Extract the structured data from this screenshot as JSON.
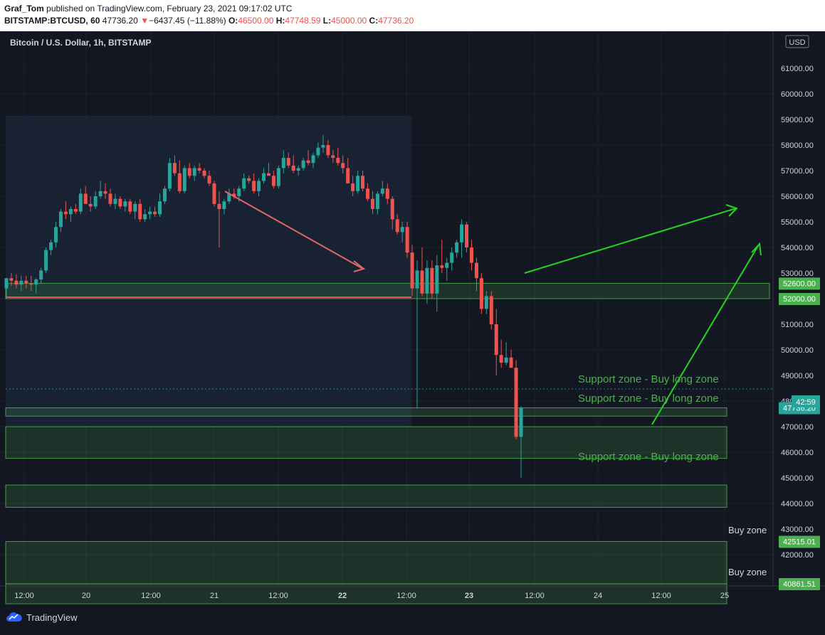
{
  "header": {
    "author": "Graf_Tom",
    "published_text": "published on TradingView.com, February 23, 2021 09:17:02 UTC",
    "symbol": "BITSTAMP:BTCUSD, 60",
    "last_price": "47736.20",
    "change_arrow": "▼",
    "change": "−6437.45 (−11.88%)",
    "o_label": "O:",
    "o_value": "46500.00",
    "h_label": "H:",
    "h_value": "47748.59",
    "l_label": "L:",
    "l_value": "45000.00",
    "c_label": "C:",
    "c_value": "47736.20"
  },
  "chart": {
    "legend_title": "Bitcoin / U.S. Dollar, 1h, BITSTAMP",
    "currency_button": "USD",
    "countdown": "42:59",
    "price_axis_labels": [
      "61000.00",
      "60000.00",
      "59000.00",
      "58000.00",
      "57000.00",
      "56000.00",
      "55000.00",
      "54000.00",
      "53000.00",
      "52000.00",
      "51000.00",
      "50000.00",
      "49000.00",
      "48000.00",
      "47000.00",
      "46000.00",
      "45000.00",
      "44000.00",
      "43000.00",
      "42000.00"
    ],
    "time_axis_labels": [
      "12:00",
      "20",
      "12:00",
      "21",
      "12:00",
      "22",
      "12:00",
      "23",
      "12:00",
      "24",
      "12:00",
      "25"
    ],
    "level_badges": [
      {
        "name": "level-52600",
        "text": "52600.00",
        "price": 52600
      },
      {
        "name": "level-52000",
        "text": "52000.00",
        "price": 52000
      },
      {
        "name": "level-current",
        "text": "47736.20",
        "price": 47736.2
      },
      {
        "name": "level-42515",
        "text": "42515.01",
        "price": 42515.01
      },
      {
        "name": "level-40861",
        "text": "40861.51",
        "price": 40861.51
      }
    ],
    "zone_labels": {
      "support1": "Support zone - Buy long zone",
      "support2": "Support zone - Buy long zone",
      "support3": "Support zone - Buy long zone",
      "buy1": "Buy zone",
      "buy2": "Buy zone"
    },
    "colors": {
      "up": "#26a69a",
      "down": "#ef5350",
      "zone": "#4caf50",
      "arrow_green": "#22d61f",
      "arrow_red": "#e06666",
      "background": "#131722"
    }
  },
  "footer": {
    "brand": "TradingView"
  }
}
